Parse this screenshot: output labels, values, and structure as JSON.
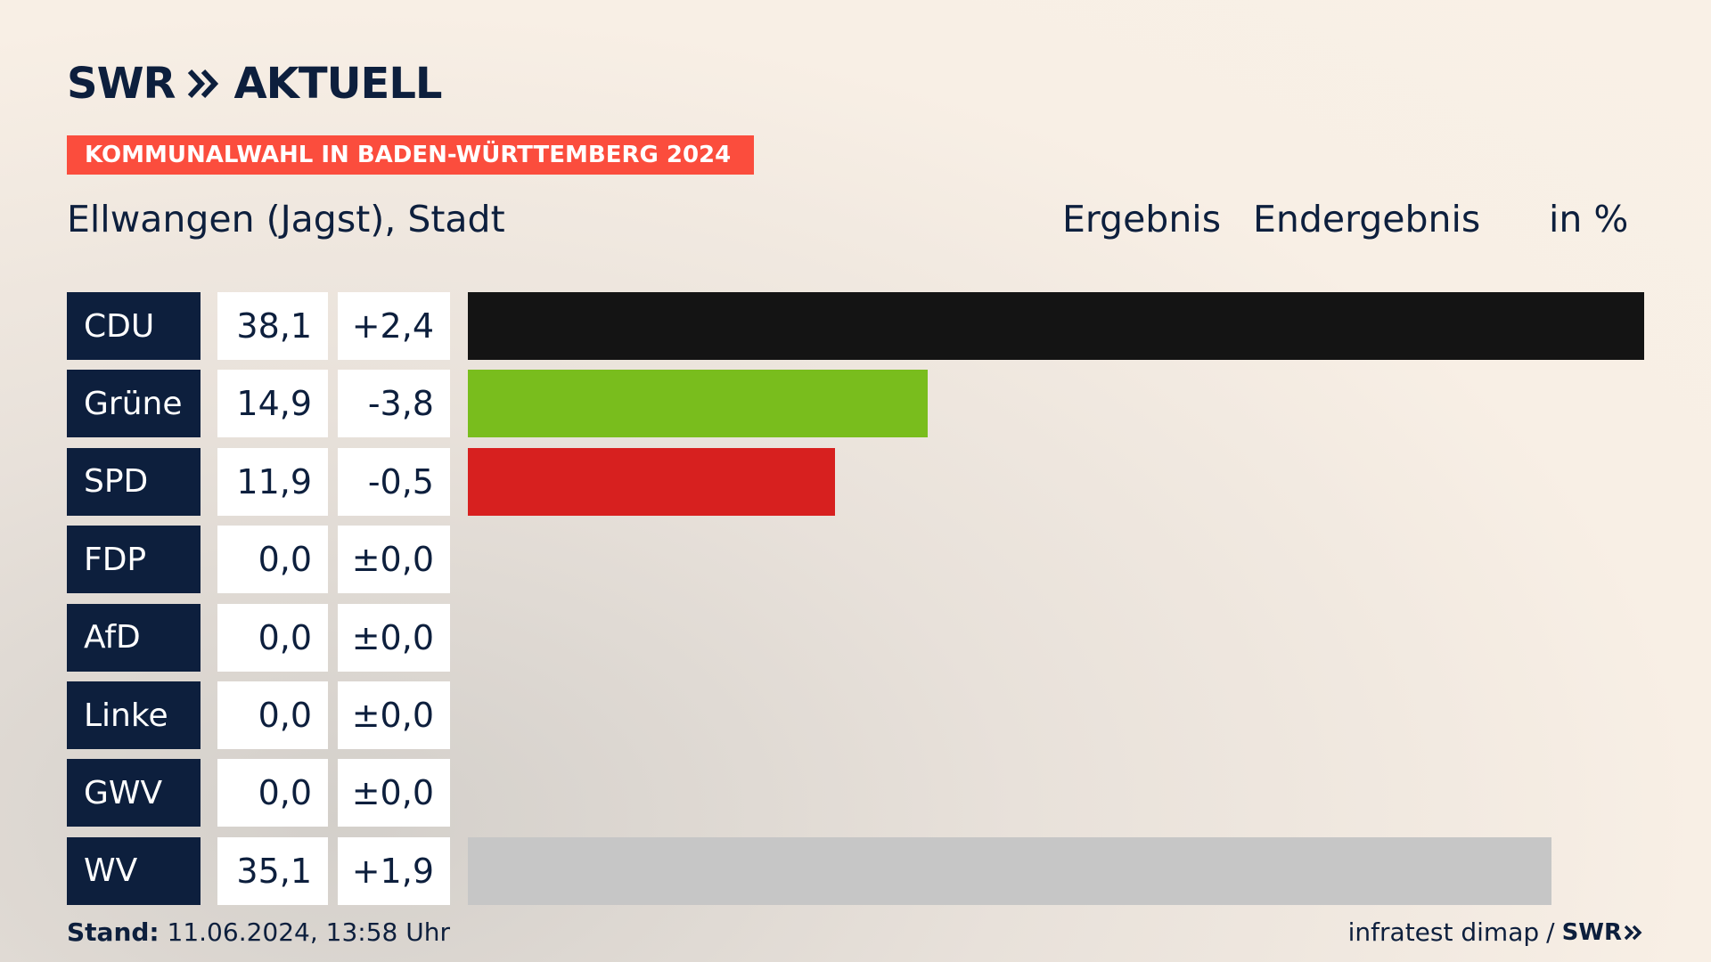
{
  "brand": {
    "swr": "SWR",
    "aktuell": "AKTUELL"
  },
  "banner": "KOMMUNALWAHL IN BADEN-WÜRTTEMBERG 2024",
  "place": "Ellwangen (Jagst), Stadt",
  "headers": {
    "result": "Ergebnis",
    "final": "Endergebnis",
    "unit": "in %"
  },
  "footer": {
    "stand_label": "Stand:",
    "stand_value": "11.06.2024, 13:58 Uhr",
    "source": "infratest dimap",
    "separator": "/",
    "source_logo": "SWR"
  },
  "chart_data": {
    "type": "bar",
    "orientation": "horizontal",
    "unit": "in %",
    "xlim": [
      0,
      38.1
    ],
    "rows": [
      {
        "party": "CDU",
        "value": 38.1,
        "value_label": "38,1",
        "diff_label": "+2,4",
        "color": "#141414"
      },
      {
        "party": "Grüne",
        "value": 14.9,
        "value_label": "14,9",
        "diff_label": "-3,8",
        "color": "#79bd1d"
      },
      {
        "party": "SPD",
        "value": 11.9,
        "value_label": "11,9",
        "diff_label": "-0,5",
        "color": "#d7201f"
      },
      {
        "party": "FDP",
        "value": 0.0,
        "value_label": "0,0",
        "diff_label": "±0,0",
        "color": "#ffe000"
      },
      {
        "party": "AfD",
        "value": 0.0,
        "value_label": "0,0",
        "diff_label": "±0,0",
        "color": "#1fa2e0"
      },
      {
        "party": "Linke",
        "value": 0.0,
        "value_label": "0,0",
        "diff_label": "±0,0",
        "color": "#be3075"
      },
      {
        "party": "GWV",
        "value": 0.0,
        "value_label": "0,0",
        "diff_label": "±0,0",
        "color": "#9e9e9e"
      },
      {
        "party": "WV",
        "value": 35.1,
        "value_label": "35,1",
        "diff_label": "+1,9",
        "color": "#c6c6c6"
      }
    ]
  }
}
